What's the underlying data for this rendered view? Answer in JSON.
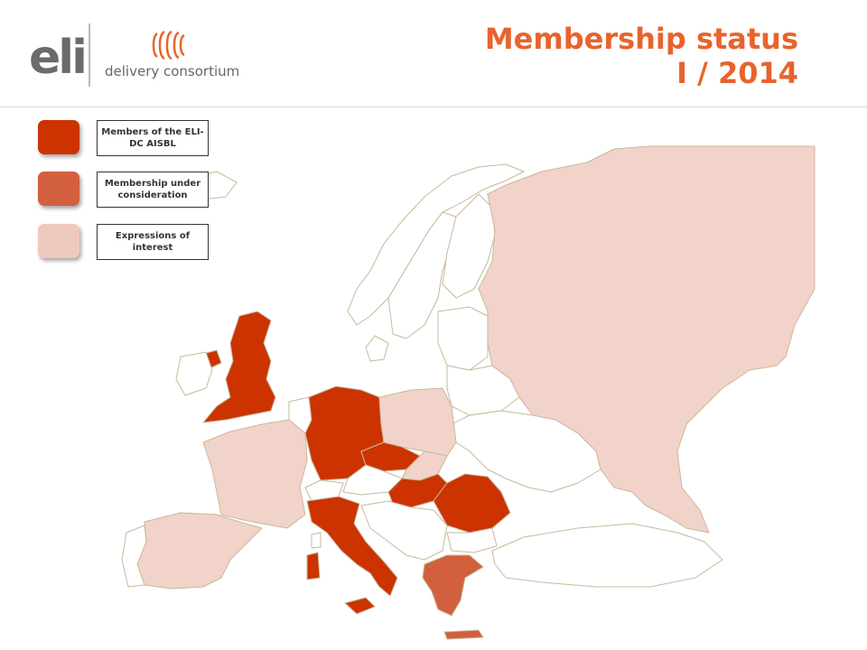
{
  "header": {
    "logo_text": "eli",
    "logo_subtitle": "delivery consortium",
    "title_line1": "Membership status",
    "title_line2": "I / 2014"
  },
  "legend": [
    {
      "label": "Members of the ELI-DC AISBL",
      "color": "#cc3300"
    },
    {
      "label": "Membership under consideration",
      "color": "#d2603e"
    },
    {
      "label": "Expressions of interest",
      "color": "#efc8be"
    }
  ],
  "colors": {
    "member": "#cc3300",
    "under_consideration": "#d2603e",
    "interest": "#f2d3ca",
    "neutral": "#ffffff",
    "border": "#c8b89a",
    "title": "#e8632d"
  },
  "map": {
    "members": [
      "United Kingdom",
      "Germany",
      "Czech Republic",
      "Hungary",
      "Romania",
      "Italy"
    ],
    "under_consideration": [
      "Greece"
    ],
    "expressions_of_interest": [
      "Russia",
      "Poland",
      "France",
      "Spain",
      "Slovakia"
    ]
  }
}
